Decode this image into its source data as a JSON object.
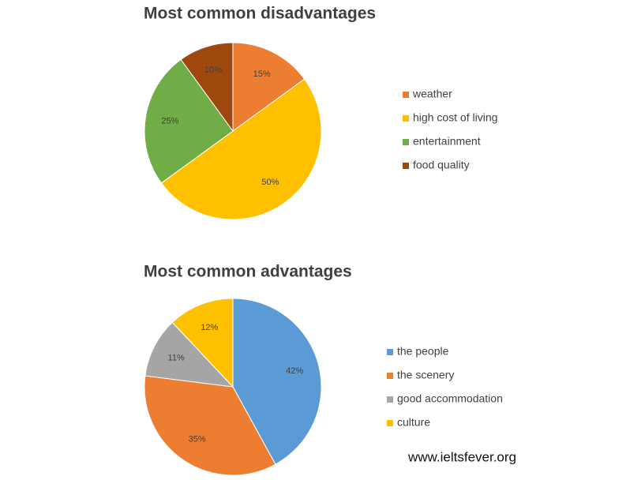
{
  "chart_data": [
    {
      "type": "pie",
      "title": "Most common disadvantages",
      "categories": [
        "weather",
        "high cost of living",
        "entertainment",
        "food quality"
      ],
      "values": [
        15,
        50,
        25,
        10
      ],
      "value_labels": [
        "15%",
        "50%",
        "25%",
        "10%"
      ],
      "colors": [
        "#ed7d31",
        "#ffc000",
        "#70ad47",
        "#9e480e"
      ],
      "legend": "right"
    },
    {
      "type": "pie",
      "title": "Most common advantages",
      "categories": [
        "the people",
        "the scenery",
        "good accommodation",
        "culture"
      ],
      "values": [
        42,
        35,
        11,
        12
      ],
      "value_labels": [
        "42%",
        "35%",
        "11%",
        "12%"
      ],
      "colors": [
        "#5b9bd5",
        "#ed7d31",
        "#a5a5a5",
        "#ffc000"
      ],
      "legend": "right"
    }
  ],
  "watermark": "www.ieltsfever.org"
}
